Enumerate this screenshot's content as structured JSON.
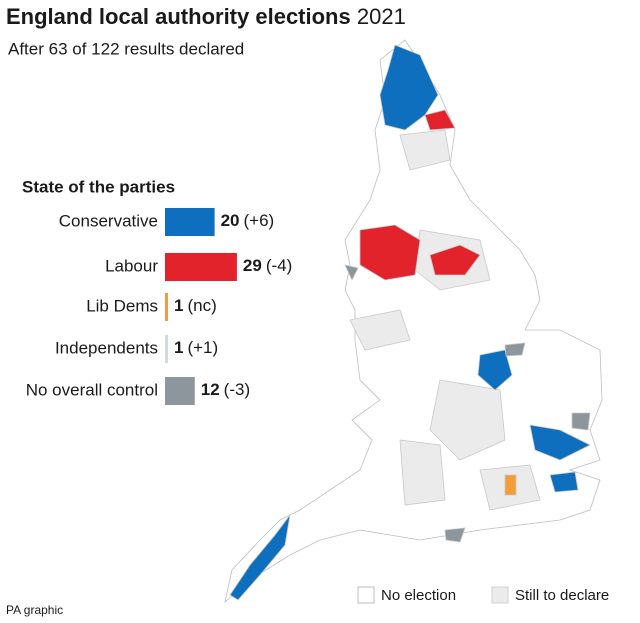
{
  "chart_data": {
    "type": "bar",
    "orientation": "horizontal",
    "title": "England local authority elections",
    "title_suffix": "2021",
    "subtitle": "After 63 of 122 results declared",
    "heading": "State of the parties",
    "categories": [
      "Conservative",
      "Labour",
      "Lib Dems",
      "Independents",
      "No overall control"
    ],
    "values": [
      20,
      29,
      1,
      1,
      12
    ],
    "changes": [
      "(+6)",
      "(-4)",
      "(nc)",
      "(+1)",
      "(-3)"
    ],
    "colors": [
      "#0f6fbf",
      "#e3232c",
      "#f29d38",
      "#d4d8df",
      "#8d959d"
    ]
  },
  "map": {
    "legend": [
      {
        "label": "No election",
        "color": "#ffffff"
      },
      {
        "label": "Still to declare",
        "color": "#ebebeb"
      }
    ],
    "source": "PA graphic"
  }
}
